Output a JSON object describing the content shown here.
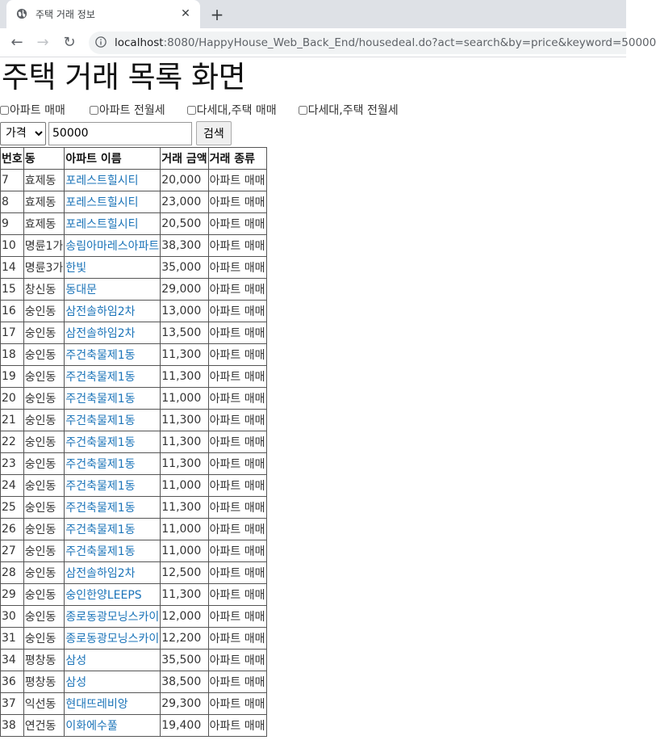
{
  "browser": {
    "tab_title": "주택 거래 정보",
    "url_host": "localhost",
    "url_rest": ":8080/HappyHouse_Web_Back_End/housedeal.do?act=search&by=price&keyword=50000"
  },
  "page": {
    "title": "주택 거래 목록 화면",
    "filters": [
      "아파트 매매",
      "아파트 전월세",
      "다세대,주택 매매",
      "다세대,주택 전월세"
    ],
    "search": {
      "select_value": "가격",
      "keyword": "50000",
      "button_label": "검색"
    }
  },
  "table": {
    "headers": [
      "번호",
      "동",
      "아파트 이름",
      "거래 금액",
      "거래 종류"
    ],
    "rows": [
      [
        "7",
        "효제동",
        "포레스트힐시티",
        "20,000",
        "아파트 매매"
      ],
      [
        "8",
        "효제동",
        "포레스트힐시티",
        "23,000",
        "아파트 매매"
      ],
      [
        "9",
        "효제동",
        "포레스트힐시티",
        "20,500",
        "아파트 매매"
      ],
      [
        "10",
        "명륜1가",
        "송림아마레스아파트",
        "38,300",
        "아파트 매매"
      ],
      [
        "14",
        "명륜3가",
        "한빛",
        "35,000",
        "아파트 매매"
      ],
      [
        "15",
        "창신동",
        "동대문",
        "29,000",
        "아파트 매매"
      ],
      [
        "16",
        "숭인동",
        "삼전솔하임2차",
        "13,000",
        "아파트 매매"
      ],
      [
        "17",
        "숭인동",
        "삼전솔하임2차",
        "13,500",
        "아파트 매매"
      ],
      [
        "18",
        "숭인동",
        "주건축물제1동",
        "11,300",
        "아파트 매매"
      ],
      [
        "19",
        "숭인동",
        "주건축물제1동",
        "11,300",
        "아파트 매매"
      ],
      [
        "20",
        "숭인동",
        "주건축물제1동",
        "11,000",
        "아파트 매매"
      ],
      [
        "21",
        "숭인동",
        "주건축물제1동",
        "11,300",
        "아파트 매매"
      ],
      [
        "22",
        "숭인동",
        "주건축물제1동",
        "11,300",
        "아파트 매매"
      ],
      [
        "23",
        "숭인동",
        "주건축물제1동",
        "11,300",
        "아파트 매매"
      ],
      [
        "24",
        "숭인동",
        "주건축물제1동",
        "11,000",
        "아파트 매매"
      ],
      [
        "25",
        "숭인동",
        "주건축물제1동",
        "11,300",
        "아파트 매매"
      ],
      [
        "26",
        "숭인동",
        "주건축물제1동",
        "11,000",
        "아파트 매매"
      ],
      [
        "27",
        "숭인동",
        "주건축물제1동",
        "11,000",
        "아파트 매매"
      ],
      [
        "28",
        "숭인동",
        "삼전솔하임2차",
        "12,500",
        "아파트 매매"
      ],
      [
        "29",
        "숭인동",
        "숭인한양LEEPS",
        "11,300",
        "아파트 매매"
      ],
      [
        "30",
        "숭인동",
        "종로동광모닝스카이",
        "12,000",
        "아파트 매매"
      ],
      [
        "31",
        "숭인동",
        "종로동광모닝스카이",
        "12,200",
        "아파트 매매"
      ],
      [
        "34",
        "평창동",
        "삼성",
        "35,500",
        "아파트 매매"
      ],
      [
        "36",
        "평창동",
        "삼성",
        "38,500",
        "아파트 매매"
      ],
      [
        "37",
        "익선동",
        "현대뜨레비앙",
        "29,300",
        "아파트 매매"
      ],
      [
        "38",
        "연건동",
        "이화에수풀",
        "19,400",
        "아파트 매매"
      ]
    ]
  },
  "colors": {
    "link": "#1a73b8",
    "tabstrip": "#dee1e6"
  }
}
